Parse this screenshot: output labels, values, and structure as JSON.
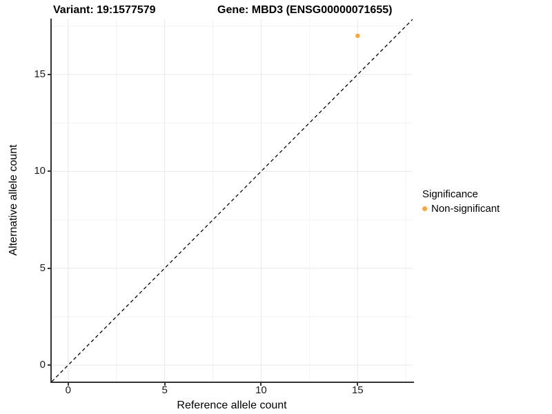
{
  "chart_data": {
    "type": "scatter",
    "title_left": "Variant: 19:1577579",
    "title_right": "Gene: MBD3 (ENSG00000071655)",
    "xlabel": "Reference allele count",
    "ylabel": "Alternative allele count",
    "xlim": [
      -0.85,
      17.85
    ],
    "ylim": [
      -0.85,
      17.85
    ],
    "major_ticks": [
      0,
      5,
      10,
      15
    ],
    "minor_ticks": [
      2.5,
      7.5,
      12.5,
      17.5
    ],
    "grid": true,
    "major_grid_color": "#e8e8e8",
    "minor_grid_color": "#f2f2f2",
    "identity_line": {
      "style": "dashed",
      "color": "#000000"
    },
    "points": [
      {
        "x": 15,
        "y": 17,
        "series": "Non-significant",
        "color": "#FCA63C"
      }
    ],
    "legend": {
      "position": "right",
      "title": "Significance",
      "entries": [
        {
          "label": "Non-significant",
          "color": "#FCA63C"
        }
      ]
    }
  }
}
